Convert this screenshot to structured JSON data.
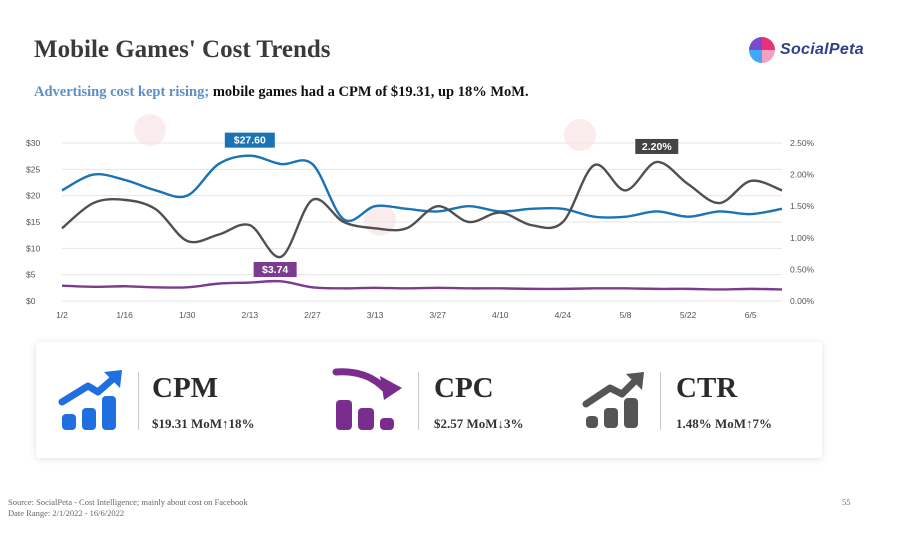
{
  "header": {
    "title": "Mobile Games' Cost Trends",
    "subtitle_highlight": "Advertising cost kept rising;",
    "subtitle_rest": " mobile games had a CPM of $19.31, up 18% MoM."
  },
  "logo": {
    "text": "SocialPeta"
  },
  "colors": {
    "cpm": "#1a73b5",
    "ctr": "#505050",
    "cpc": "#7b3c8f",
    "highlight": "#5b8fc7",
    "icon_blue": "#1f6fe0",
    "icon_purple": "#7b2d8e",
    "icon_gray": "#555555"
  },
  "chart_data": {
    "type": "line",
    "x_ticks": [
      "1/2",
      "1/16",
      "1/30",
      "2/13",
      "2/27",
      "3/13",
      "3/27",
      "4/10",
      "4/24",
      "5/8",
      "5/22",
      "6/5"
    ],
    "x": [
      "1/2",
      "1/9",
      "1/16",
      "1/23",
      "1/30",
      "2/6",
      "2/13",
      "2/20",
      "2/27",
      "3/6",
      "3/13",
      "3/20",
      "3/27",
      "4/3",
      "4/10",
      "4/17",
      "4/24",
      "5/1",
      "5/8",
      "5/15",
      "5/22",
      "5/29",
      "6/5",
      "6/12"
    ],
    "left_axis": {
      "range": [
        0,
        30
      ],
      "ticks": [
        "$0",
        "$5",
        "$10",
        "$15",
        "$20",
        "$25",
        "$30"
      ]
    },
    "right_axis": {
      "range": [
        0,
        2.5
      ],
      "ticks": [
        "0.00%",
        "0.50%",
        "1.00%",
        "1.50%",
        "2.00%",
        "2.50%"
      ]
    },
    "series": [
      {
        "key": "cpm",
        "axis": "left",
        "values": [
          21.0,
          24.0,
          23.0,
          21.0,
          20.0,
          26.0,
          27.6,
          26.0,
          26.0,
          15.5,
          18.0,
          17.5,
          17.0,
          18.0,
          17.0,
          17.5,
          17.5,
          16.0,
          16.0,
          17.0,
          16.0,
          17.0,
          16.5,
          17.5
        ]
      },
      {
        "key": "cpc",
        "axis": "left",
        "values": [
          2.9,
          2.7,
          2.8,
          2.6,
          2.6,
          3.3,
          3.5,
          3.74,
          2.6,
          2.4,
          2.5,
          2.4,
          2.5,
          2.4,
          2.4,
          2.3,
          2.3,
          2.4,
          2.4,
          2.3,
          2.3,
          2.2,
          2.3,
          2.2
        ]
      },
      {
        "key": "ctr",
        "axis": "right",
        "values": [
          1.15,
          1.55,
          1.6,
          1.45,
          0.95,
          1.05,
          1.2,
          0.7,
          1.6,
          1.25,
          1.15,
          1.15,
          1.5,
          1.25,
          1.4,
          1.2,
          1.25,
          2.15,
          1.75,
          2.2,
          1.85,
          1.55,
          1.9,
          1.75
        ]
      }
    ],
    "callouts": [
      {
        "series": "cpm",
        "index": 6,
        "label": "$27.60"
      },
      {
        "series": "cpc",
        "index": 7,
        "label": "$3.74"
      },
      {
        "series": "ctr",
        "index": 19,
        "label": "2.20%"
      }
    ]
  },
  "kpis": [
    {
      "icon": "trend-up-bars-icon",
      "name": "CPM",
      "value": "$19.31 MoM↑18%"
    },
    {
      "icon": "trend-down-bars-icon",
      "name": "CPC",
      "value": "$2.57 MoM↓3%"
    },
    {
      "icon": "trend-up-bars-icon",
      "name": "CTR",
      "value": "1.48% MoM↑7%"
    }
  ],
  "footer": {
    "source_line1": "Source: SocialPeta - Cost Intelligence; mainly about cost on Facebook",
    "source_line2": "Date Range: 2/1/2022 - 16/6/2022",
    "page_number": "55"
  }
}
